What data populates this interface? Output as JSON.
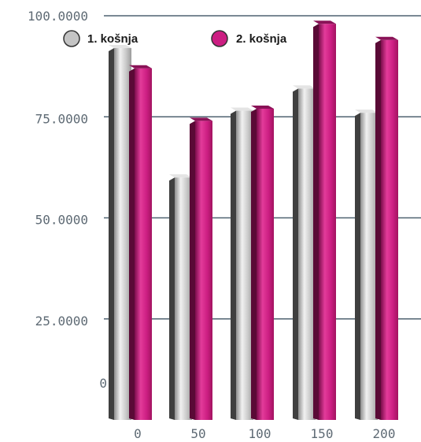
{
  "chart_data": {
    "type": "bar",
    "categories": [
      "0",
      "50",
      "100",
      "150",
      "200"
    ],
    "series": [
      {
        "name": "1. košnja",
        "values": [
          92,
          60,
          76.5,
          82,
          76
        ]
      },
      {
        "name": "2. košnja",
        "values": [
          87,
          74,
          77,
          98,
          94
        ]
      }
    ],
    "y_ticks": [
      "0",
      "25.0000",
      "50.0000",
      "75.0000",
      "100.0000"
    ],
    "y_tick_values": [
      0,
      25,
      50,
      75,
      100
    ],
    "ylim": [
      0,
      100
    ],
    "legend_position": "top-left",
    "grid": true,
    "colors": {
      "series_1": "#c4c4c4",
      "series_2": "#cc1e82",
      "gridline": "#4f6270",
      "tick_text": "#5e6a74"
    }
  }
}
